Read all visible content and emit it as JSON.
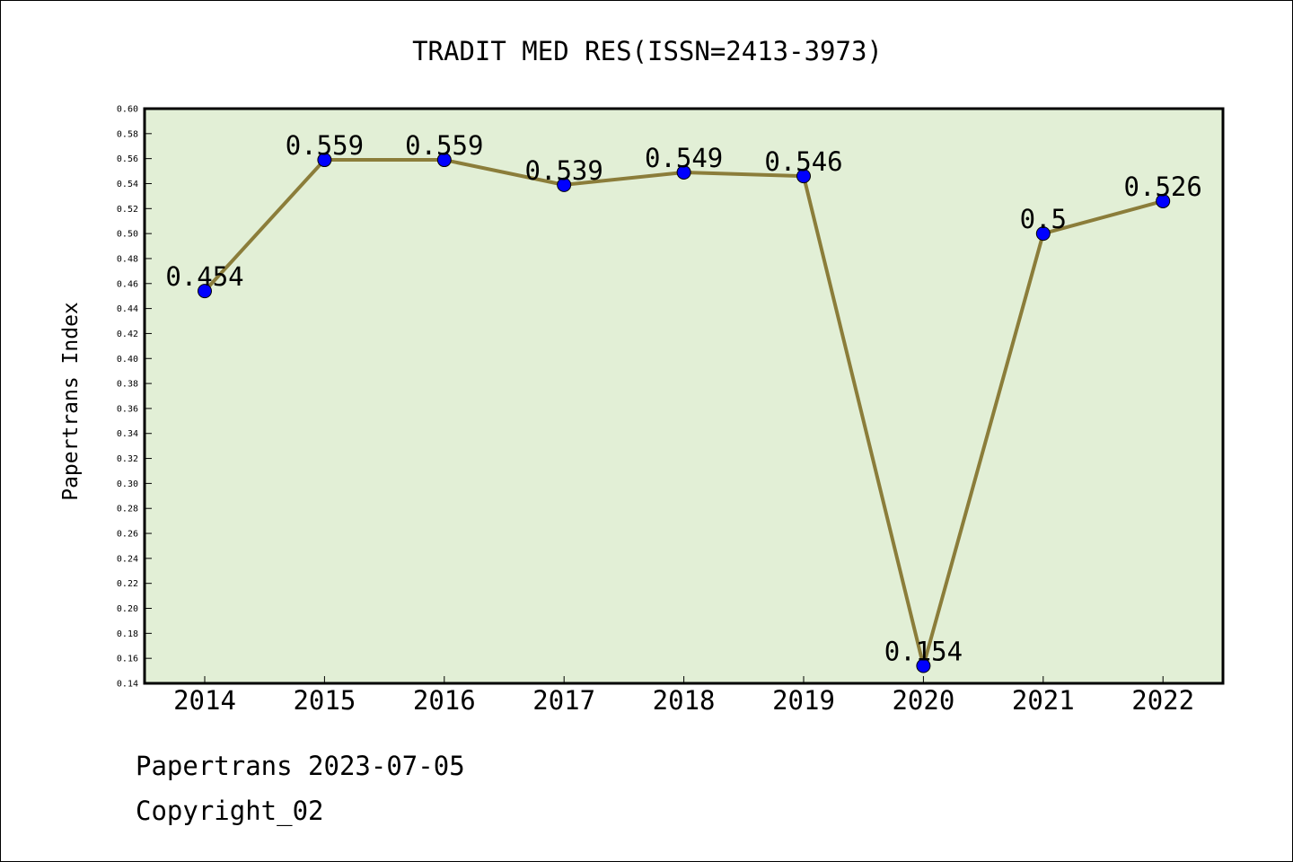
{
  "chart_data": {
    "type": "line",
    "title": "TRADIT MED RES(ISSN=2413-3973)",
    "xlabel": "",
    "ylabel": "Papertrans Index",
    "categories": [
      "2014",
      "2015",
      "2016",
      "2017",
      "2018",
      "2019",
      "2020",
      "2021",
      "2022"
    ],
    "values": [
      0.454,
      0.559,
      0.559,
      0.539,
      0.549,
      0.546,
      0.154,
      0.5,
      0.526
    ],
    "data_labels": [
      "0.454",
      "0.559",
      "0.559",
      "0.539",
      "0.549",
      "0.546",
      "0.154",
      "0.5",
      "0.526"
    ],
    "ylim": [
      0.14,
      0.6
    ],
    "yticks": [
      "0.14",
      "0.16",
      "0.18",
      "0.20",
      "0.22",
      "0.24",
      "0.26",
      "0.28",
      "0.30",
      "0.32",
      "0.34",
      "0.36",
      "0.38",
      "0.40",
      "0.42",
      "0.44",
      "0.46",
      "0.48",
      "0.50",
      "0.52",
      "0.54",
      "0.56",
      "0.58",
      "0.60"
    ],
    "grid": false,
    "legend": "none",
    "colors": {
      "plot_background": "#e2efd6",
      "line": "#8b7d3a",
      "marker": "#0000ff"
    }
  },
  "footer": {
    "line1": "Papertrans 2023-07-05",
    "line2": "Copyright_02"
  }
}
